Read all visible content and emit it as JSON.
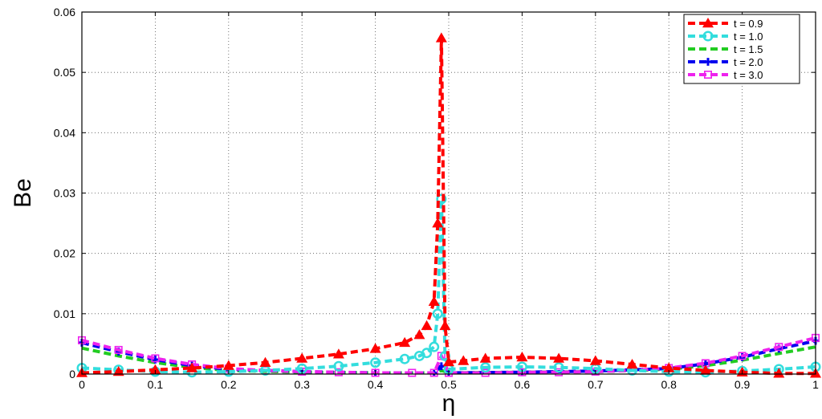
{
  "chart_data": {
    "type": "line",
    "title": "",
    "xlabel": "η",
    "ylabel": "Be",
    "xlim": [
      0,
      1
    ],
    "ylim": [
      0,
      0.06
    ],
    "x_ticks": [
      "0",
      "0.1",
      "0.2",
      "0.3",
      "0.4",
      "0.5",
      "0.6",
      "0.7",
      "0.8",
      "0.9",
      "1"
    ],
    "y_ticks": [
      "0",
      "0.01",
      "0.02",
      "0.03",
      "0.04",
      "0.05",
      "0.06"
    ],
    "grid": true,
    "legend_position": "top-right",
    "series": [
      {
        "name": "t = 0.9",
        "color": "#ff0000",
        "marker": "triangle",
        "x": [
          0,
          0.05,
          0.1,
          0.15,
          0.2,
          0.25,
          0.3,
          0.35,
          0.4,
          0.44,
          0.46,
          0.47,
          0.48,
          0.485,
          0.49,
          0.495,
          0.5,
          0.52,
          0.55,
          0.6,
          0.65,
          0.7,
          0.75,
          0.8,
          0.85,
          0.9,
          0.95,
          1.0
        ],
        "y": [
          0.0002,
          0.0004,
          0.0007,
          0.001,
          0.0014,
          0.0019,
          0.0026,
          0.0033,
          0.0042,
          0.0052,
          0.0065,
          0.008,
          0.012,
          0.025,
          0.0557,
          0.008,
          0.002,
          0.0022,
          0.0026,
          0.0028,
          0.0026,
          0.0022,
          0.0016,
          0.001,
          0.0006,
          0.0003,
          0.0001,
          0.0001
        ]
      },
      {
        "name": "t = 1.0",
        "color": "#33dddd",
        "marker": "circle",
        "x": [
          0,
          0.05,
          0.1,
          0.15,
          0.2,
          0.25,
          0.3,
          0.35,
          0.4,
          0.44,
          0.46,
          0.47,
          0.48,
          0.485,
          0.49,
          0.495,
          0.5,
          0.55,
          0.6,
          0.65,
          0.7,
          0.75,
          0.8,
          0.85,
          0.9,
          0.95,
          1.0
        ],
        "y": [
          0.001,
          0.0007,
          0.0004,
          0.0003,
          0.0004,
          0.0006,
          0.0009,
          0.0013,
          0.0019,
          0.0025,
          0.003,
          0.0035,
          0.0045,
          0.01,
          0.029,
          0.003,
          0.0008,
          0.0011,
          0.0012,
          0.0011,
          0.0009,
          0.0006,
          0.0004,
          0.0003,
          0.0005,
          0.0008,
          0.0012
        ]
      },
      {
        "name": "t = 1.5",
        "color": "#22cc22",
        "marker": "none",
        "x": [
          0,
          0.05,
          0.1,
          0.15,
          0.2,
          0.3,
          0.4,
          0.48,
          0.49,
          0.5,
          0.6,
          0.7,
          0.8,
          0.85,
          0.9,
          0.95,
          1.0
        ],
        "y": [
          0.0043,
          0.003,
          0.0019,
          0.0011,
          0.0006,
          0.0003,
          0.0002,
          0.0002,
          0.0006,
          0.0002,
          0.0003,
          0.0004,
          0.0008,
          0.0014,
          0.0023,
          0.0034,
          0.0045
        ]
      },
      {
        "name": "t = 2.0",
        "color": "#0000ee",
        "marker": "plus",
        "x": [
          0,
          0.05,
          0.1,
          0.15,
          0.2,
          0.3,
          0.4,
          0.48,
          0.49,
          0.5,
          0.6,
          0.7,
          0.8,
          0.85,
          0.9,
          0.95,
          1.0
        ],
        "y": [
          0.0052,
          0.0037,
          0.0024,
          0.0014,
          0.0008,
          0.0004,
          0.0002,
          0.0002,
          0.0013,
          0.0002,
          0.0003,
          0.0005,
          0.0009,
          0.0017,
          0.0028,
          0.0042,
          0.0055
        ]
      },
      {
        "name": "t = 3.0",
        "color": "#ee22ee",
        "marker": "square",
        "x": [
          0,
          0.05,
          0.1,
          0.15,
          0.2,
          0.25,
          0.3,
          0.35,
          0.4,
          0.45,
          0.48,
          0.49,
          0.5,
          0.55,
          0.6,
          0.65,
          0.7,
          0.75,
          0.8,
          0.85,
          0.9,
          0.95,
          1.0
        ],
        "y": [
          0.0056,
          0.004,
          0.0026,
          0.0016,
          0.0009,
          0.0006,
          0.0004,
          0.0003,
          0.0002,
          0.0002,
          0.0002,
          0.003,
          0.0002,
          0.0002,
          0.0003,
          0.0003,
          0.0004,
          0.0006,
          0.001,
          0.0018,
          0.003,
          0.0045,
          0.006
        ]
      }
    ]
  }
}
